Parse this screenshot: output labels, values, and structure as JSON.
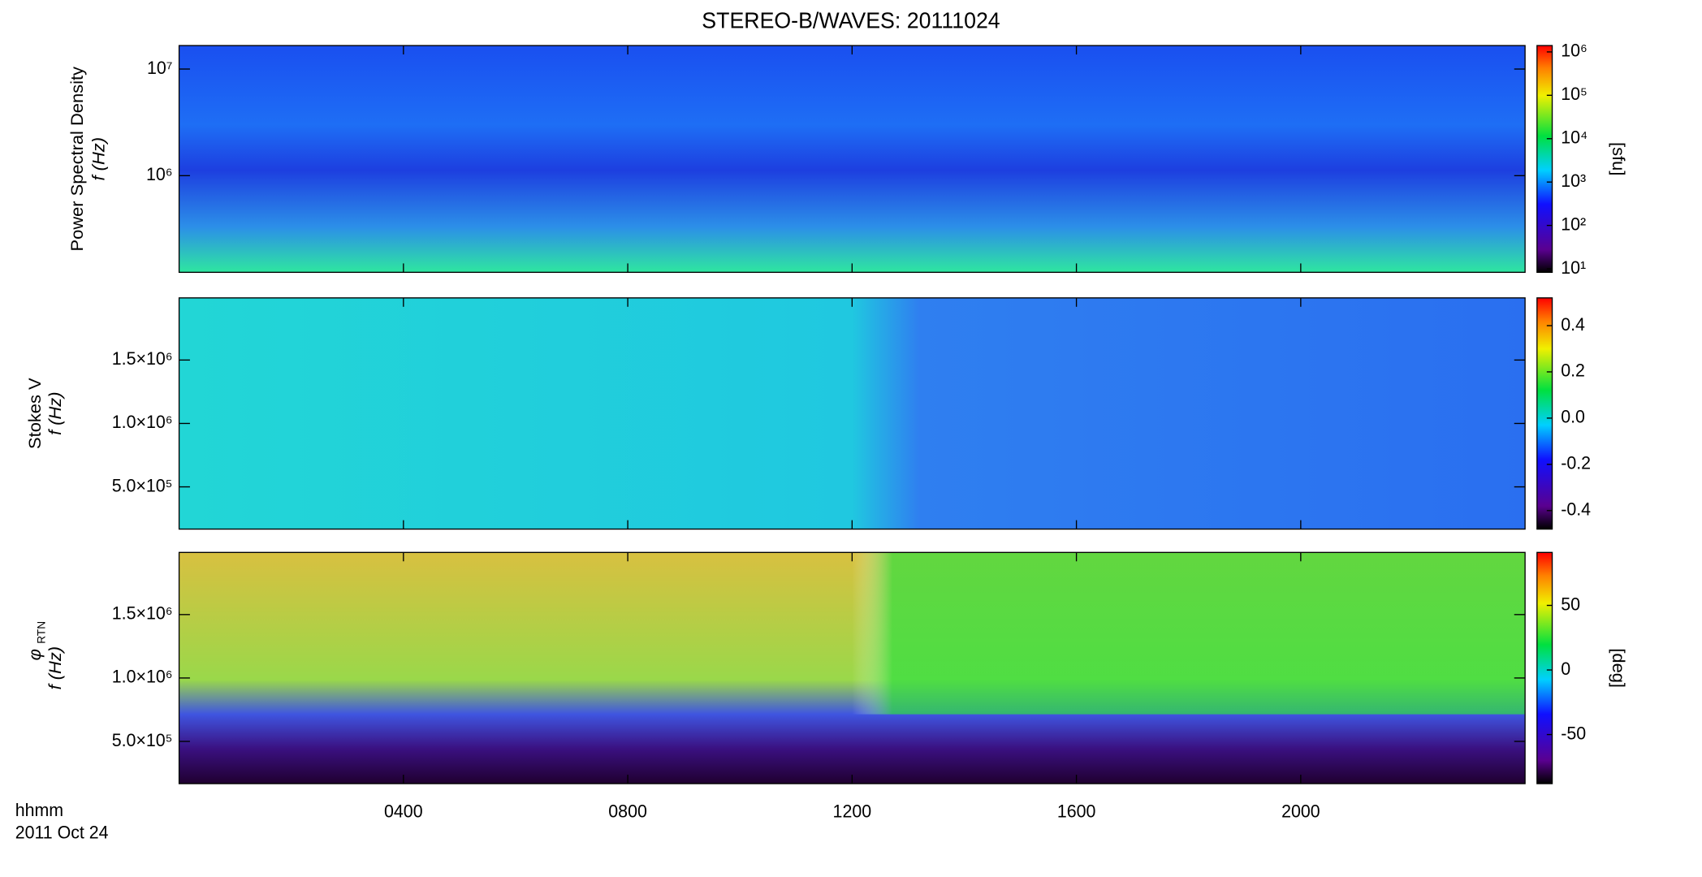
{
  "chart_data": [
    {
      "type": "heatmap",
      "title": "STEREO-B/WAVES: 20111024",
      "ylabel": [
        "Power Spectral Density",
        "f (Hz)"
      ],
      "ylog": true,
      "ylim": [
        124000,
        16600000
      ],
      "yticks": [
        {
          "value": 1000000,
          "label": "10⁶"
        },
        {
          "value": 10000000,
          "label": "10⁷"
        }
      ],
      "colormap": "rainbow",
      "colorbar": {
        "label": "[sfu]",
        "log": true,
        "lim": [
          8.3,
          1400000
        ],
        "ticks": [
          {
            "value": 10,
            "label": "10¹"
          },
          {
            "value": 100,
            "label": "10²"
          },
          {
            "value": 1000,
            "label": "10³"
          },
          {
            "value": 10000,
            "label": "10⁴"
          },
          {
            "value": 100000,
            "label": "10⁵"
          },
          {
            "value": 1000000,
            "label": "10⁶"
          }
        ]
      }
    },
    {
      "type": "heatmap",
      "ylabel": [
        "Stokes V",
        "f (Hz)"
      ],
      "ylog": false,
      "ylim": [
        167000,
        1990000
      ],
      "yticks": [
        {
          "value": 500000,
          "label": "5.0×10⁵"
        },
        {
          "value": 1000000,
          "label": "1.0×10⁶"
        },
        {
          "value": 1500000,
          "label": "1.5×10⁶"
        }
      ],
      "colormap": "rainbow",
      "colorbar": {
        "log": false,
        "lim": [
          -0.48,
          0.52
        ],
        "ticks": [
          -0.4,
          -0.2,
          {
            "value": 0,
            "label": "0.0"
          },
          0.2,
          0.4
        ]
      }
    },
    {
      "type": "heatmap",
      "ylabel": [
        "φ",
        "RTN",
        "f (Hz)"
      ],
      "ylog": false,
      "ylim": [
        167000,
        1990000
      ],
      "yticks": [
        {
          "value": 500000,
          "label": "5.0×10⁵"
        },
        {
          "value": 1000000,
          "label": "1.0×10⁶"
        },
        {
          "value": 1500000,
          "label": "1.5×10⁶"
        }
      ],
      "colormap": "rainbow",
      "colorbar": {
        "label": "[deg]",
        "log": false,
        "lim": [
          -88,
          91
        ],
        "ticks": [
          -50,
          0,
          50
        ]
      },
      "xlim": [
        0,
        24
      ],
      "xticks": [
        {
          "value": 4,
          "label": "0400"
        },
        {
          "value": 8,
          "label": "0800"
        },
        {
          "value": 12,
          "label": "1200"
        },
        {
          "value": 16,
          "label": "1600"
        },
        {
          "value": 20,
          "label": "2000"
        }
      ],
      "xlabel": "hhmm",
      "date": "2011 Oct 24"
    }
  ]
}
